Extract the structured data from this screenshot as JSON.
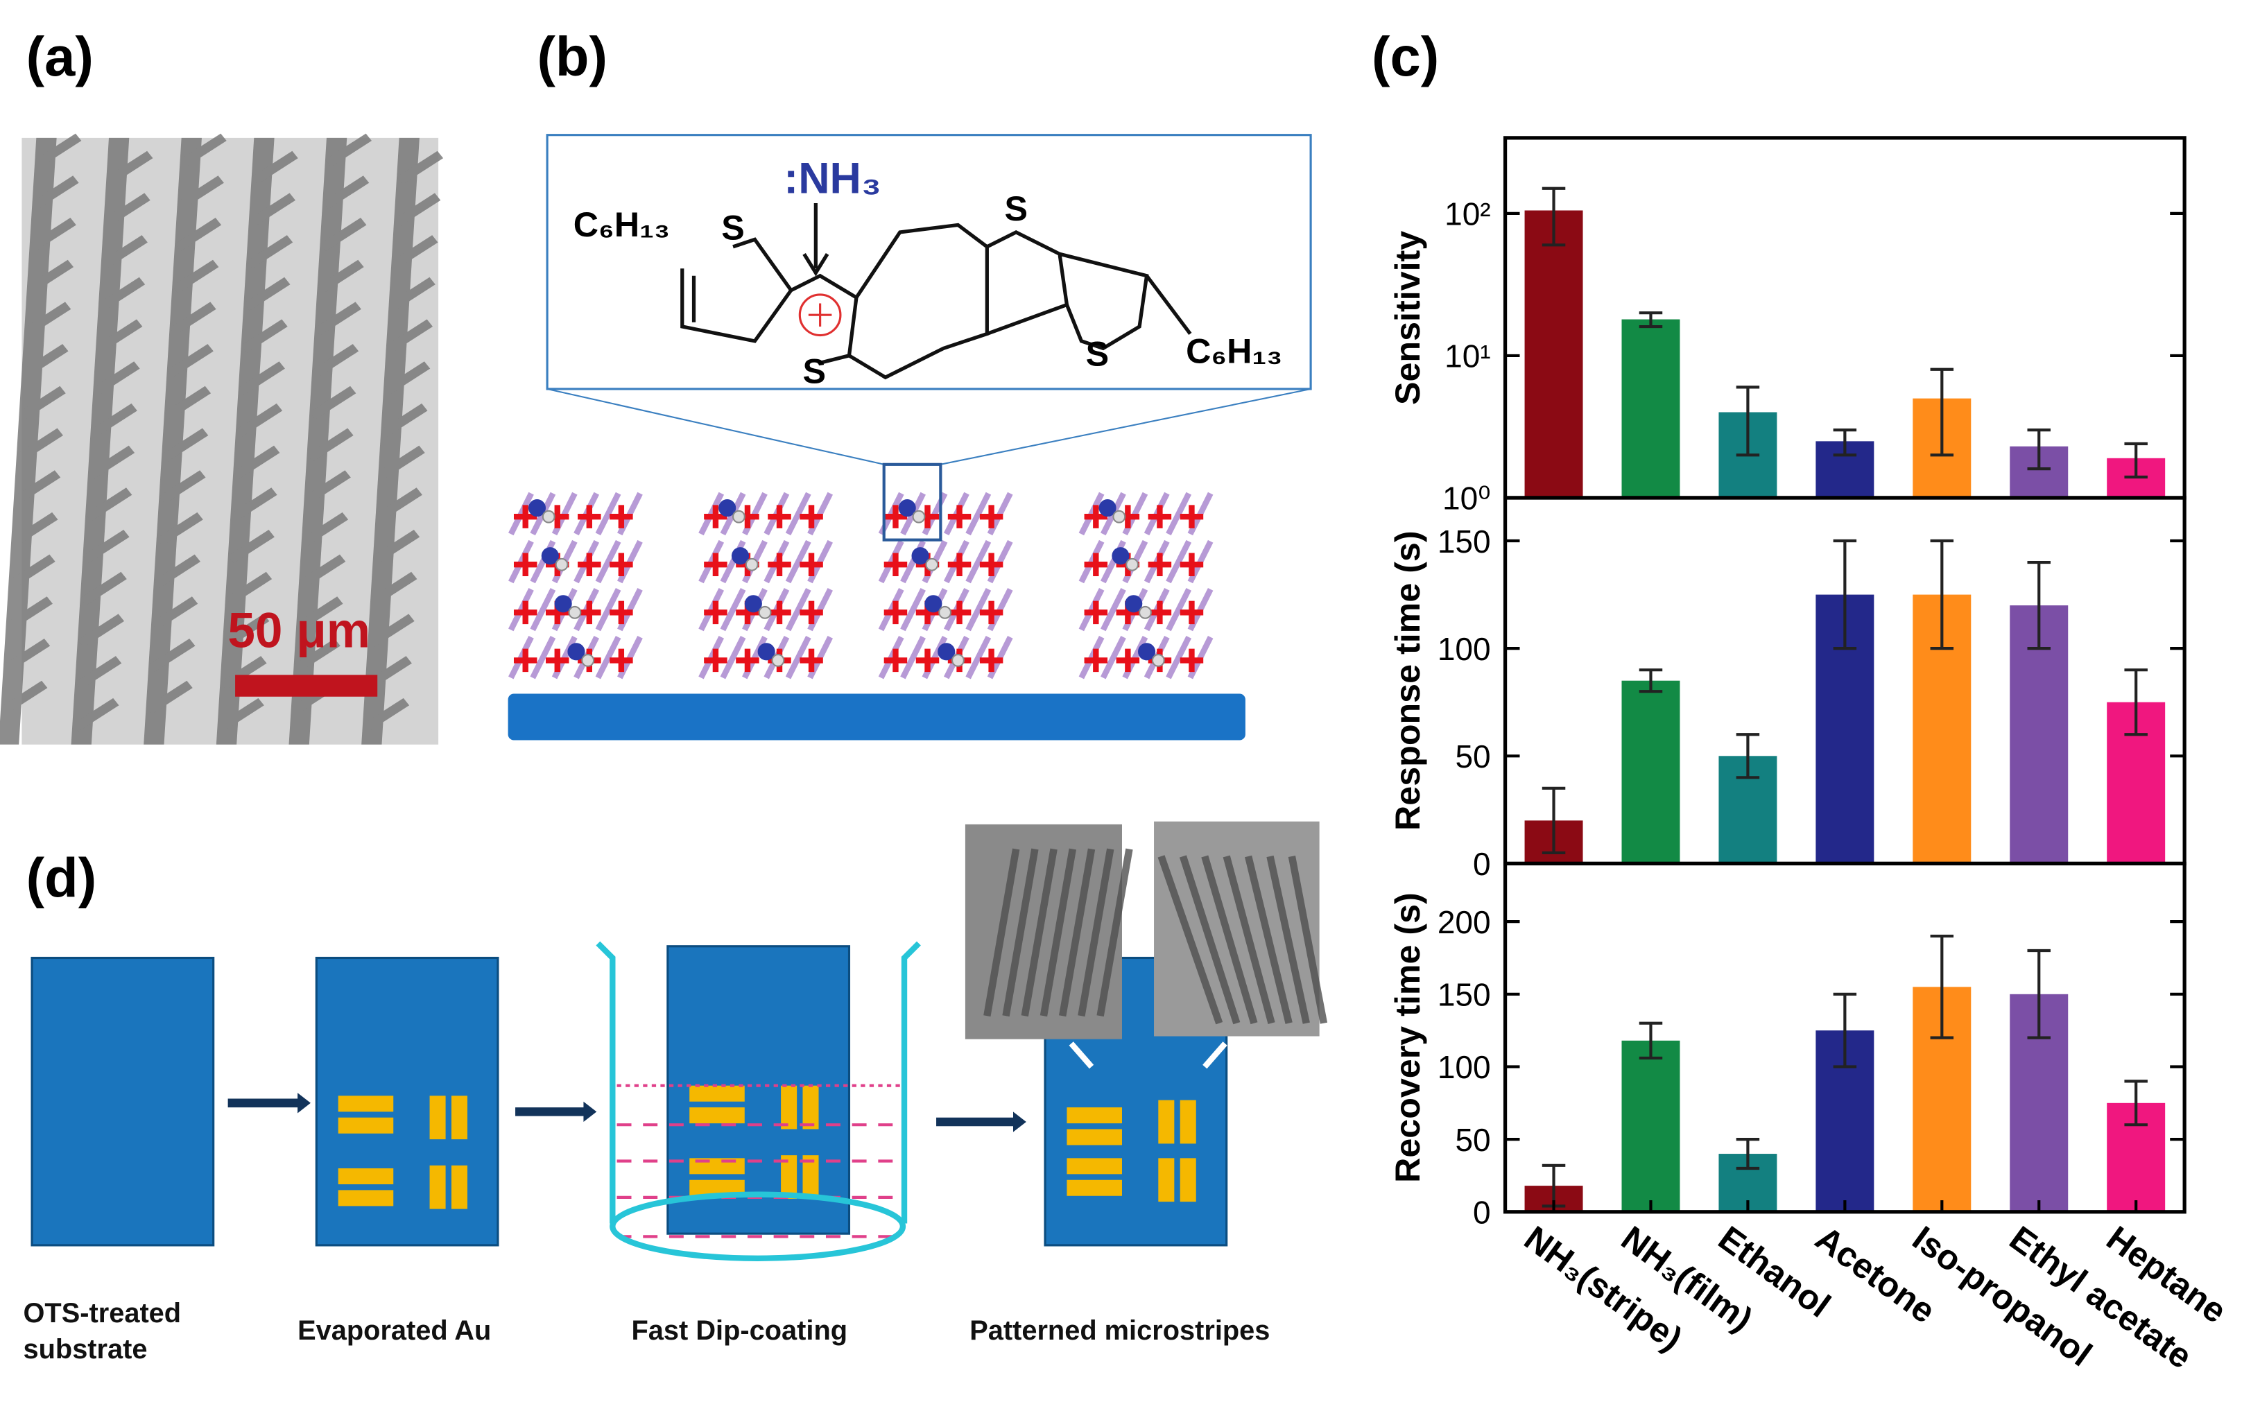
{
  "panel_labels": [
    "(a)",
    "(b)",
    "(c)",
    "(d)"
  ],
  "panel_a": {
    "scale_bar": "50 μm"
  },
  "panel_b": {
    "analyte": ":NH₃",
    "substituents": [
      "C₆H₁₃",
      "C₆H₁₃"
    ],
    "sulfur": [
      "S",
      "S",
      "S",
      "S"
    ]
  },
  "panel_d": {
    "steps": [
      "OTS-treated substrate",
      "Evaporated Au",
      "Fast Dip-coating",
      "Patterned microstripes"
    ]
  },
  "chart_data": [
    {
      "type": "bar",
      "ylabel": "Sensitivity",
      "log_scale": true,
      "ylim": [
        1,
        340
      ],
      "yticks": [
        {
          "value": 1,
          "label": "10⁰"
        },
        {
          "value": 10,
          "label": "10¹"
        },
        {
          "value": 100,
          "label": "10²"
        }
      ],
      "values": [
        105,
        18,
        4,
        2.5,
        5,
        2.3,
        1.9
      ],
      "errors": [
        45,
        2,
        2,
        0.5,
        3,
        0.7,
        0.5
      ],
      "colors": [
        "#8b0a14",
        "#128a45",
        "#138080",
        "#23288a",
        "#ff8c1a",
        "#7b4fa6",
        "#f0177f"
      ]
    },
    {
      "type": "bar",
      "ylabel": "Response time (s)",
      "log_scale": false,
      "ylim": [
        0,
        170
      ],
      "yticks": [
        0,
        50,
        100,
        150
      ],
      "values": [
        20,
        85,
        50,
        125,
        125,
        120,
        75
      ],
      "errors": [
        15,
        5,
        10,
        25,
        25,
        20,
        15
      ],
      "colors": [
        "#8b0a14",
        "#128a45",
        "#138080",
        "#23288a",
        "#ff8c1a",
        "#7b4fa6",
        "#f0177f"
      ]
    },
    {
      "type": "bar",
      "ylabel": "Recovery time (s)",
      "log_scale": false,
      "ylim": [
        0,
        240
      ],
      "yticks": [
        0,
        50,
        100,
        150,
        200
      ],
      "categories": [
        "NH₃(stripe)",
        "NH₃(film)",
        "Ethanol",
        "Acetone",
        "Iso-propanol",
        "Ethyl acetate",
        "Heptane"
      ],
      "values": [
        18,
        118,
        40,
        125,
        155,
        150,
        75
      ],
      "errors": [
        14,
        12,
        10,
        25,
        35,
        30,
        15
      ],
      "colors": [
        "#8b0a14",
        "#128a45",
        "#138080",
        "#23288a",
        "#ff8c1a",
        "#7b4fa6",
        "#f0177f"
      ]
    }
  ]
}
